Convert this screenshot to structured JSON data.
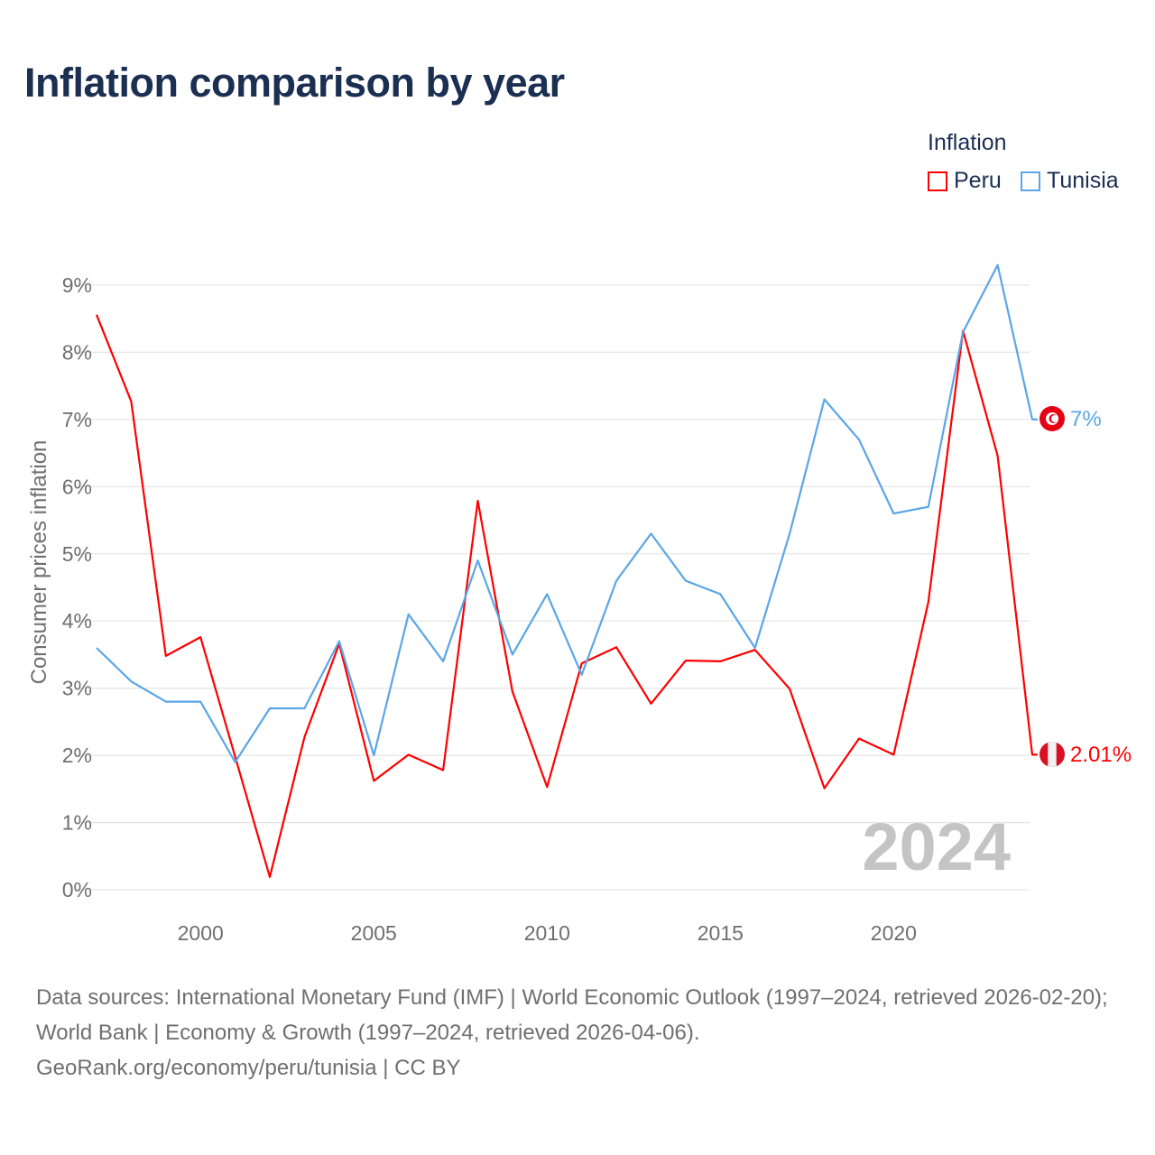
{
  "title": "Inflation comparison by year",
  "legend": {
    "title": "Inflation",
    "items": [
      {
        "name": "Peru",
        "color": "#ff0000"
      },
      {
        "name": "Tunisia",
        "color": "#5aa6e8"
      }
    ]
  },
  "watermark_year": "2024",
  "end_labels": {
    "peru": "2.01%",
    "tunisia": "7%"
  },
  "source_lines": [
    "Data sources: International Monetary Fund (IMF) | World Economic Outlook (1997–2024, retrieved 2026-02-20); World Bank | Economy & Growth (1997–2024, retrieved 2026-04-06).",
    "GeoRank.org/economy/peru/tunisia | CC BY"
  ],
  "chart_data": {
    "type": "line",
    "title": "Inflation comparison by year",
    "xlabel": "",
    "ylabel": "Consumer prices inflation",
    "xlim": [
      1997,
      2024
    ],
    "ylim": [
      0,
      9
    ],
    "xticks": [
      2000,
      2005,
      2010,
      2015,
      2020
    ],
    "yticks": [
      0,
      1,
      2,
      3,
      4,
      5,
      6,
      7,
      8,
      9
    ],
    "ytick_labels": [
      "0%",
      "1%",
      "2%",
      "3%",
      "4%",
      "5%",
      "6%",
      "7%",
      "8%",
      "9%"
    ],
    "grid": true,
    "legend_position": "top-right",
    "x": [
      1997,
      1998,
      1999,
      2000,
      2001,
      2002,
      2003,
      2004,
      2005,
      2006,
      2007,
      2008,
      2009,
      2010,
      2011,
      2012,
      2013,
      2014,
      2015,
      2016,
      2017,
      2018,
      2019,
      2020,
      2021,
      2022,
      2023,
      2024
    ],
    "series": [
      {
        "name": "Peru",
        "color": "#ff0000",
        "values": [
          8.56,
          7.27,
          3.48,
          3.76,
          1.98,
          0.19,
          2.27,
          3.66,
          1.62,
          2.01,
          1.78,
          5.79,
          2.95,
          1.53,
          3.37,
          3.61,
          2.77,
          3.41,
          3.4,
          3.57,
          2.99,
          1.51,
          2.25,
          2.01,
          4.28,
          8.32,
          6.46,
          2.01
        ]
      },
      {
        "name": "Tunisia",
        "color": "#5aa6e8",
        "values": [
          3.6,
          3.1,
          2.8,
          2.8,
          1.9,
          2.7,
          2.7,
          3.7,
          2.0,
          4.1,
          3.4,
          4.9,
          3.5,
          4.4,
          3.2,
          4.6,
          5.3,
          4.6,
          4.4,
          3.6,
          5.3,
          7.3,
          6.7,
          5.6,
          5.7,
          8.3,
          9.3,
          7.0
        ]
      }
    ]
  }
}
